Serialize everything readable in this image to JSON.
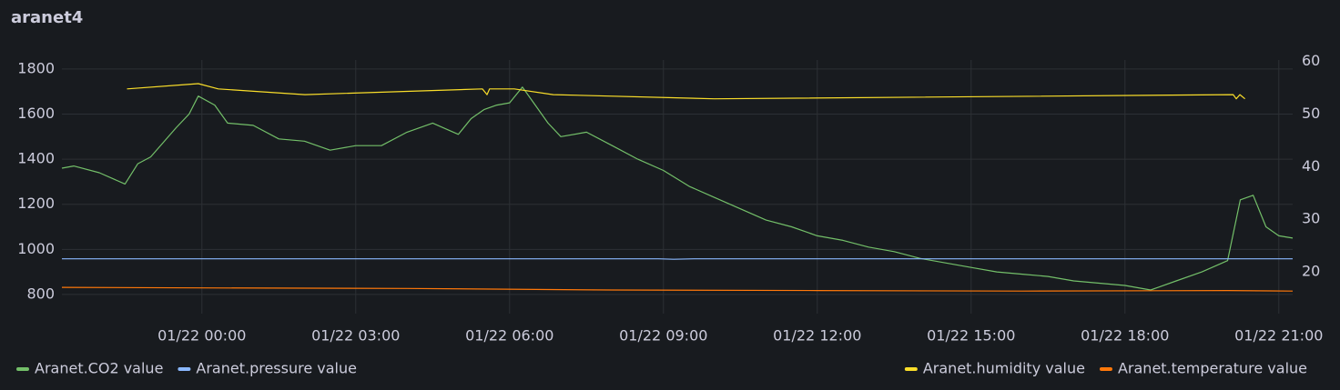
{
  "chart_data": {
    "type": "line",
    "title": "aranet4",
    "xlim": [
      -2.73,
      21.27
    ],
    "xticks": [
      {
        "value": 0,
        "label": "01/22 00:00"
      },
      {
        "value": 3,
        "label": "01/22 03:00"
      },
      {
        "value": 6,
        "label": "01/22 06:00"
      },
      {
        "value": 9,
        "label": "01/22 09:00"
      },
      {
        "value": 12,
        "label": "01/22 12:00"
      },
      {
        "value": 15,
        "label": "01/22 15:00"
      },
      {
        "value": 18,
        "label": "01/22 18:00"
      },
      {
        "value": 21,
        "label": "01/22 21:00"
      }
    ],
    "ylim": [
      715,
      1840
    ],
    "yticks": [
      800,
      1000,
      1200,
      1400,
      1600,
      1800
    ],
    "y2lim": [
      12,
      60.3
    ],
    "y2ticks": [
      20,
      30,
      40,
      50,
      60
    ],
    "grid": true,
    "series": [
      {
        "name": "Aranet.CO2 value",
        "color": "#73bf69",
        "x": [
          -2.73,
          -2.5,
          -2.0,
          -1.5,
          -1.25,
          -1.0,
          -0.5,
          -0.25,
          -0.07,
          0.25,
          0.5,
          1.0,
          1.5,
          2.0,
          2.5,
          3.0,
          3.5,
          4.0,
          4.5,
          5.0,
          5.25,
          5.5,
          5.75,
          6.0,
          6.25,
          6.5,
          6.75,
          7.0,
          7.5,
          8.0,
          8.5,
          9.0,
          9.5,
          10.0,
          10.5,
          11.0,
          11.5,
          12.0,
          12.5,
          13.0,
          13.5,
          14.0,
          14.5,
          15.0,
          15.5,
          16.0,
          16.5,
          17.0,
          17.5,
          18.0,
          18.5,
          19.0,
          19.5,
          20.0,
          20.25,
          20.5,
          20.75,
          21.0,
          21.27
        ],
        "values": [
          1360,
          1370,
          1340,
          1290,
          1380,
          1410,
          1540,
          1600,
          1680,
          1640,
          1560,
          1550,
          1490,
          1480,
          1440,
          1460,
          1460,
          1520,
          1560,
          1510,
          1580,
          1620,
          1640,
          1650,
          1720,
          1640,
          1560,
          1500,
          1520,
          1460,
          1400,
          1350,
          1280,
          1230,
          1180,
          1130,
          1100,
          1060,
          1040,
          1010,
          990,
          960,
          940,
          920,
          900,
          890,
          880,
          860,
          850,
          840,
          820,
          860,
          900,
          950,
          1220,
          1240,
          1100,
          1060,
          1050
        ]
      },
      {
        "name": "Aranet.pressure value",
        "color": "#8ab8ff",
        "x": [
          -2.73,
          8.9,
          9.2,
          9.6,
          21.27
        ],
        "values": [
          958,
          958,
          956,
          958,
          958
        ]
      },
      {
        "name": "Aranet.humidity value",
        "color": "#fade2a",
        "axis": "y2",
        "x": [
          -1.46,
          -0.07,
          0.32,
          2.01,
          5.47,
          5.56,
          5.61,
          6.09,
          6.85,
          9.99,
          20.11,
          20.17,
          20.24,
          20.34
        ],
        "values": [
          54.8,
          55.8,
          54.8,
          53.7,
          54.8,
          53.7,
          54.8,
          54.8,
          53.7,
          52.9,
          53.7,
          52.9,
          53.7,
          52.9
        ]
      },
      {
        "name": "Aranet.temperature value",
        "color": "#ff780a",
        "axis": "y2",
        "x": [
          -2.73,
          0,
          4,
          8,
          12,
          16,
          20,
          21.27
        ],
        "values": [
          17.0,
          16.9,
          16.8,
          16.5,
          16.4,
          16.3,
          16.4,
          16.3
        ]
      }
    ]
  }
}
